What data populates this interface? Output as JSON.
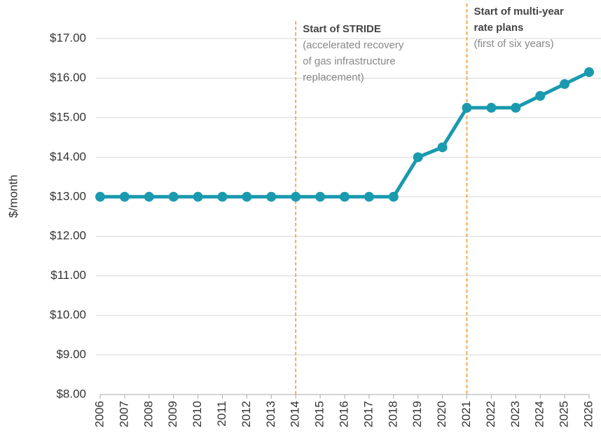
{
  "chart_data": {
    "type": "line",
    "y_axis_label": "$/month",
    "categories": [
      "2006",
      "2007",
      "2008",
      "2009",
      "2010",
      "2011",
      "2012",
      "2013",
      "2014",
      "2015",
      "2016",
      "2017",
      "2018",
      "2019",
      "2020",
      "2021",
      "2022",
      "2023",
      "2024",
      "2025",
      "2026"
    ],
    "series": [
      {
        "color": "#1a9aae",
        "values": [
          13,
          13,
          13,
          13,
          13,
          13,
          13,
          13,
          13,
          13,
          13,
          13,
          13,
          14.0,
          14.25,
          15.25,
          15.25,
          15.25,
          15.55,
          15.85,
          16.15
        ]
      }
    ],
    "ylim": [
      8,
      17
    ],
    "yticks": [
      {
        "value": 8,
        "label": "$8.00"
      },
      {
        "value": 9,
        "label": "$9.00"
      },
      {
        "value": 10,
        "label": "$10.00"
      },
      {
        "value": 11,
        "label": "$11.00"
      },
      {
        "value": 12,
        "label": "$12.00"
      },
      {
        "value": 13,
        "label": "$13.00"
      },
      {
        "value": 14,
        "label": "$14.00"
      },
      {
        "value": 15,
        "label": "$15.00"
      },
      {
        "value": 16,
        "label": "$16.00"
      },
      {
        "value": 17,
        "label": "$17.00"
      }
    ],
    "grid": true,
    "annotations": [
      {
        "x": "2014",
        "color": "#f0962e",
        "title": [
          "Start of STRIDE"
        ],
        "text": [
          "(accelerated recovery",
          "of gas infrastructure",
          "replacement)"
        ]
      },
      {
        "x": "2021",
        "color": "#f0962e",
        "title": [
          "Start of multi-year",
          "rate plans"
        ],
        "text": [
          "(first of six years)"
        ]
      }
    ]
  }
}
